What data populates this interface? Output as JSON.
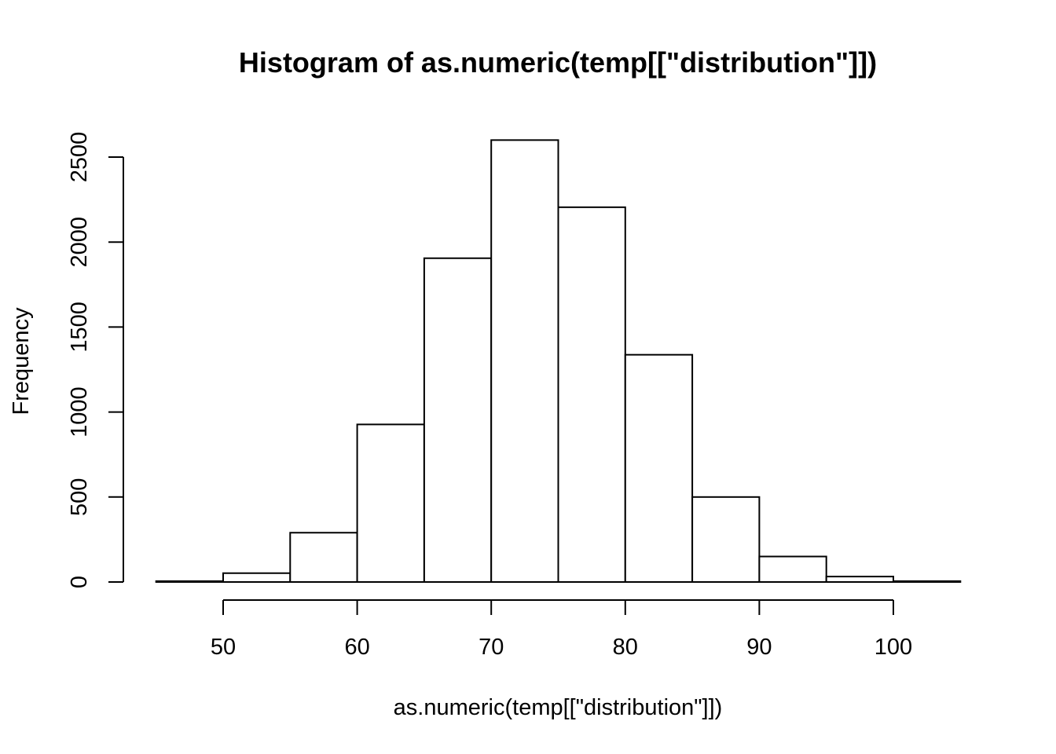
{
  "chart_data": {
    "type": "bar",
    "title": "Histogram of as.numeric(temp[[\"distribution\"]])",
    "xlabel": "as.numeric(temp[[\"distribution\"]])",
    "ylabel": "Frequency",
    "bins": [
      {
        "from": 45,
        "to": 50,
        "count": 5
      },
      {
        "from": 50,
        "to": 55,
        "count": 52
      },
      {
        "from": 55,
        "to": 60,
        "count": 290
      },
      {
        "from": 60,
        "to": 65,
        "count": 927
      },
      {
        "from": 65,
        "to": 70,
        "count": 1905
      },
      {
        "from": 70,
        "to": 75,
        "count": 2600
      },
      {
        "from": 75,
        "to": 80,
        "count": 2205
      },
      {
        "from": 80,
        "to": 85,
        "count": 1337
      },
      {
        "from": 85,
        "to": 90,
        "count": 500
      },
      {
        "from": 90,
        "to": 95,
        "count": 150
      },
      {
        "from": 95,
        "to": 100,
        "count": 32
      },
      {
        "from": 100,
        "to": 105,
        "count": 5
      }
    ],
    "xlim": [
      45,
      105
    ],
    "ylim": [
      0,
      2600
    ],
    "xticks": [
      50,
      60,
      70,
      80,
      90,
      100
    ],
    "yticks": [
      0,
      500,
      1000,
      1500,
      2000,
      2500
    ],
    "grid": false,
    "colors": {
      "bar_fill": "#ffffff",
      "bar_stroke": "#000000"
    }
  }
}
